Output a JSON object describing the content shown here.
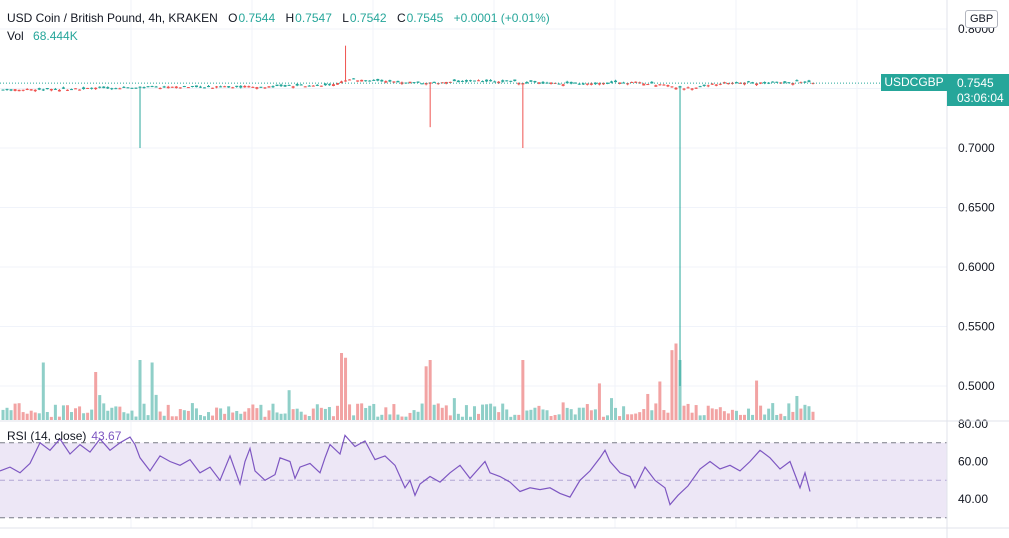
{
  "legend": {
    "title": "USD Coin / British Pound, 4h, KRAKEN",
    "o_label": "O",
    "o_value": "0.7544",
    "h_label": "H",
    "h_value": "0.7547",
    "l_label": "L",
    "l_value": "0.7542",
    "c_label": "C",
    "c_value": "0.7545",
    "change": "+0.0001 (+0.01%)",
    "vol_label": "Vol",
    "vol_value": "68.444K"
  },
  "rsi_legend": {
    "label": "RSI (14, close)",
    "value": "43.67"
  },
  "currency_button": "GBP",
  "symbol_tag": "USDCGBP",
  "last_price": "0.7545",
  "countdown": "03:06:04",
  "colors": {
    "up": "#26a69a",
    "down": "#ef5350",
    "volume_up": "#8fcfc8",
    "volume_down": "#f2a3a3",
    "rsi_line": "#7e57c2",
    "rsi_band": "#ede7f6",
    "grid": "#f0f3fa"
  },
  "chart_data": [
    {
      "type": "candlestick",
      "title": "USD Coin / British Pound, 4h, KRAKEN",
      "y_axis": {
        "ticks": [
          "0.8000",
          "0.7000",
          "0.6500",
          "0.6000",
          "0.5500",
          "0.5000"
        ],
        "range": [
          0.46,
          0.81
        ],
        "position": "right"
      },
      "grid": true,
      "last_value": 0.7545,
      "notable_points": [
        {
          "label": "spike low near bar ~139",
          "low": 0.7
        },
        {
          "label": "spike high near bar ~347",
          "high": 0.786
        },
        {
          "label": "spike low near bar ~429",
          "low": 0.7175
        },
        {
          "label": "spike low near bar ~522",
          "low": 0.7
        },
        {
          "label": "deep wick near bar ~680",
          "low": 0.5
        }
      ]
    },
    {
      "type": "bar",
      "title": "Volume",
      "last_value": "68.444K"
    },
    {
      "type": "line",
      "title": "RSI (14, close)",
      "y_axis": {
        "ticks": [
          "80.00",
          "60.00",
          "40.00"
        ],
        "range": [
          25,
          85
        ],
        "position": "right"
      },
      "bands": {
        "upper": 70,
        "middle": 50,
        "lower": 30
      },
      "last_value": 43.67,
      "points": [
        [
          0,
          55
        ],
        [
          10,
          57
        ],
        [
          20,
          54
        ],
        [
          30,
          59
        ],
        [
          40,
          70
        ],
        [
          50,
          66
        ],
        [
          60,
          72
        ],
        [
          70,
          64
        ],
        [
          80,
          69
        ],
        [
          90,
          65
        ],
        [
          100,
          72
        ],
        [
          110,
          66
        ],
        [
          120,
          70
        ],
        [
          130,
          73
        ],
        [
          135,
          69
        ],
        [
          140,
          62
        ],
        [
          150,
          55
        ],
        [
          160,
          63
        ],
        [
          170,
          60
        ],
        [
          180,
          58
        ],
        [
          190,
          61
        ],
        [
          200,
          54
        ],
        [
          210,
          57
        ],
        [
          220,
          50
        ],
        [
          230,
          63
        ],
        [
          240,
          48
        ],
        [
          245,
          60
        ],
        [
          250,
          67
        ],
        [
          255,
          55
        ],
        [
          265,
          50
        ],
        [
          275,
          53
        ],
        [
          280,
          62
        ],
        [
          290,
          60
        ],
        [
          295,
          51
        ],
        [
          300,
          57
        ],
        [
          310,
          59
        ],
        [
          320,
          54
        ],
        [
          325,
          62
        ],
        [
          330,
          69
        ],
        [
          340,
          64
        ],
        [
          345,
          74
        ],
        [
          355,
          68
        ],
        [
          365,
          71
        ],
        [
          375,
          61
        ],
        [
          385,
          63
        ],
        [
          395,
          58
        ],
        [
          400,
          52
        ],
        [
          405,
          46
        ],
        [
          410,
          50
        ],
        [
          415,
          42
        ],
        [
          420,
          48
        ],
        [
          430,
          52
        ],
        [
          440,
          49
        ],
        [
          450,
          54
        ],
        [
          460,
          58
        ],
        [
          470,
          51
        ],
        [
          480,
          57
        ],
        [
          485,
          60
        ],
        [
          490,
          54
        ],
        [
          500,
          52
        ],
        [
          510,
          49
        ],
        [
          520,
          44
        ],
        [
          530,
          46
        ],
        [
          540,
          45
        ],
        [
          550,
          46
        ],
        [
          560,
          43
        ],
        [
          570,
          41
        ],
        [
          580,
          50
        ],
        [
          590,
          55
        ],
        [
          600,
          62
        ],
        [
          605,
          66
        ],
        [
          610,
          60
        ],
        [
          620,
          54
        ],
        [
          630,
          52
        ],
        [
          635,
          46
        ],
        [
          645,
          57
        ],
        [
          655,
          50
        ],
        [
          665,
          46
        ],
        [
          670,
          37
        ],
        [
          678,
          42
        ],
        [
          688,
          47
        ],
        [
          700,
          56
        ],
        [
          710,
          60
        ],
        [
          720,
          56
        ],
        [
          730,
          58
        ],
        [
          740,
          55
        ],
        [
          750,
          60
        ],
        [
          760,
          66
        ],
        [
          770,
          62
        ],
        [
          780,
          56
        ],
        [
          790,
          60
        ],
        [
          800,
          46
        ],
        [
          805,
          54
        ],
        [
          810,
          44
        ]
      ]
    }
  ]
}
